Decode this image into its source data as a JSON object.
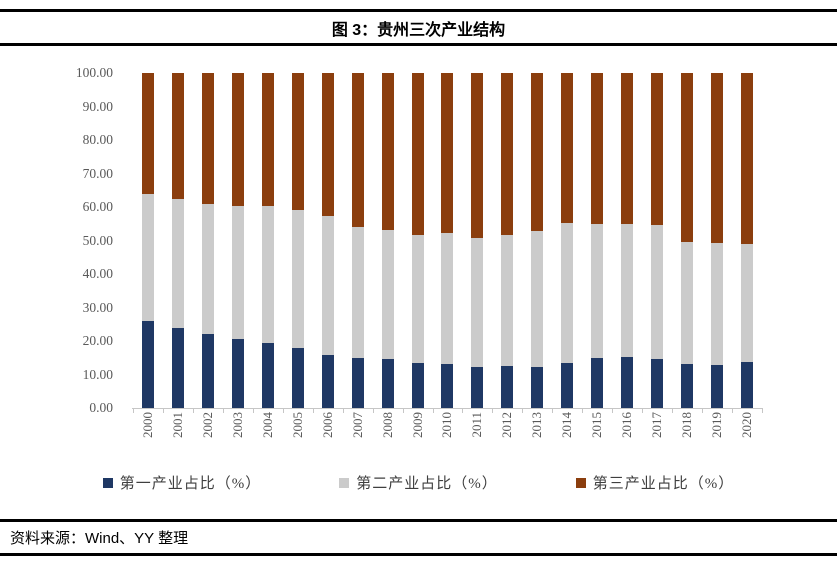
{
  "header": {
    "title": "图 3：贵州三次产业结构"
  },
  "footer": {
    "source": "资料来源：Wind、YY 整理"
  },
  "colors": {
    "primary_series": "#1F3864",
    "secondary_series": "#CBCBCB",
    "tertiary_series": "#8B3E0E",
    "axis_line": "#C6C6C6",
    "tick_text": "#595959",
    "rule": "#000000"
  },
  "chart_data": {
    "type": "bar",
    "stacked": true,
    "title": "图 3：贵州三次产业结构",
    "xlabel": "",
    "ylabel": "",
    "ylim": [
      0,
      100
    ],
    "grid": false,
    "legend_position": "bottom",
    "x_labels_rotated_degrees": -90,
    "y_ticks": [
      "100.00",
      "90.00",
      "80.00",
      "70.00",
      "60.00",
      "50.00",
      "40.00",
      "30.00",
      "20.00",
      "10.00",
      "0.00"
    ],
    "categories": [
      "2000",
      "2001",
      "2002",
      "2003",
      "2004",
      "2005",
      "2006",
      "2007",
      "2008",
      "2009",
      "2010",
      "2011",
      "2012",
      "2013",
      "2014",
      "2015",
      "2016",
      "2017",
      "2018",
      "2019",
      "2020"
    ],
    "series": [
      {
        "name": "第一产业占比（%）",
        "key": "primary",
        "color": "#1F3864",
        "values": [
          26.0,
          23.8,
          22.1,
          20.5,
          19.3,
          17.8,
          15.8,
          14.8,
          14.5,
          13.5,
          13.0,
          12.1,
          12.5,
          12.3,
          13.3,
          15.0,
          15.3,
          14.6,
          13.0,
          12.8,
          13.8
        ]
      },
      {
        "name": "第二产业占比（%）",
        "key": "secondary",
        "color": "#CBCBCB",
        "values": [
          38.0,
          38.6,
          38.9,
          39.9,
          40.9,
          41.2,
          41.6,
          39.3,
          38.6,
          38.1,
          39.1,
          38.7,
          39.1,
          40.6,
          41.8,
          39.8,
          39.5,
          40.0,
          36.6,
          36.5,
          35.3
        ]
      },
      {
        "name": "第三产业占比（%）",
        "key": "tertiary",
        "color": "#8B3E0E",
        "values": [
          36.0,
          37.6,
          39.0,
          39.6,
          39.8,
          41.0,
          42.6,
          45.9,
          46.9,
          48.4,
          47.9,
          49.2,
          48.4,
          47.1,
          44.9,
          45.2,
          45.2,
          45.4,
          50.4,
          50.7,
          50.9
        ]
      }
    ]
  }
}
